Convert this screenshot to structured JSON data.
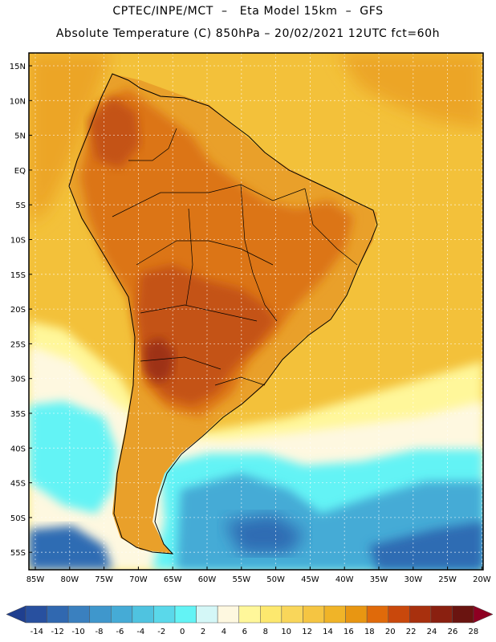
{
  "header": {
    "title_line1": "CPTEC/INPE/MCT  –   Eta Model 15km  –  GFS",
    "title_line2": "Absolute Temperature (C) 850hPa – 20/02/2021 12UTC fct=60h"
  },
  "axes": {
    "lat_labels": [
      "15N",
      "10N",
      "5N",
      "EQ",
      "5S",
      "10S",
      "15S",
      "20S",
      "25S",
      "30S",
      "35S",
      "40S",
      "45S",
      "50S",
      "55S"
    ],
    "lon_labels": [
      "85W",
      "80W",
      "75W",
      "70W",
      "65W",
      "60W",
      "55W",
      "50W",
      "45W",
      "40W",
      "35W",
      "30W",
      "25W",
      "20W"
    ]
  },
  "colorbar": {
    "labels": [
      "-14",
      "-12",
      "-10",
      "-8",
      "-6",
      "-4",
      "-2",
      "0",
      "2",
      "4",
      "6",
      "8",
      "10",
      "12",
      "14",
      "16",
      "18",
      "20",
      "22",
      "24",
      "26",
      "28"
    ],
    "colors": [
      "#1f3f8f",
      "#28509f",
      "#3068b0",
      "#3a80bf",
      "#3f97cc",
      "#45abd6",
      "#4fc3e0",
      "#5ad8ea",
      "#63f3f5",
      "#d4f7f7",
      "#fef8e0",
      "#fff79a",
      "#fde86e",
      "#f9d65a",
      "#f5c542",
      "#f0b428",
      "#e89612",
      "#e06a0a",
      "#c9480c",
      "#a8300e",
      "#8a2010",
      "#6a1410",
      "#8e0022"
    ]
  },
  "map_colors": {
    "ocean_warm": "#f3c13a",
    "ocean_hot": "#eca526",
    "land_base": "#e9a02a",
    "land_hot": "#dc7416",
    "land_hotter": "#c45212",
    "land_hottest": "#9e3212",
    "cold_light": "#63f3f5",
    "cold_mid": "#45abd6",
    "cold_deep": "#2f6cb3",
    "pale": "#fef8e0",
    "yellow": "#fff79a"
  }
}
